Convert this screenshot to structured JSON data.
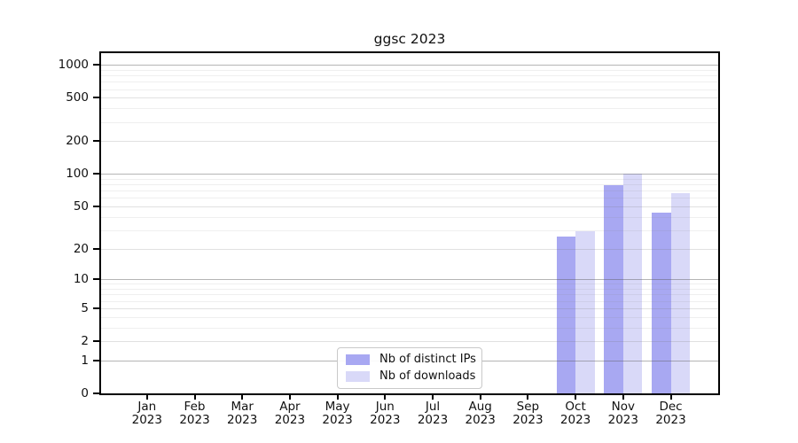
{
  "title": "ggsc 2023",
  "colors": {
    "background": "#ffffff",
    "spine": "#000000",
    "bar_distinct_ips": "#a8a8f2",
    "bar_downloads": "#d9d9f8",
    "legend_border": "#c9c9c9"
  },
  "chart_data": {
    "type": "bar",
    "title": "ggsc 2023",
    "categories": [
      {
        "month": "Jan",
        "year": "2023"
      },
      {
        "month": "Feb",
        "year": "2023"
      },
      {
        "month": "Mar",
        "year": "2023"
      },
      {
        "month": "Apr",
        "year": "2023"
      },
      {
        "month": "May",
        "year": "2023"
      },
      {
        "month": "Jun",
        "year": "2023"
      },
      {
        "month": "Jul",
        "year": "2023"
      },
      {
        "month": "Aug",
        "year": "2023"
      },
      {
        "month": "Sep",
        "year": "2023"
      },
      {
        "month": "Oct",
        "year": "2023"
      },
      {
        "month": "Nov",
        "year": "2023"
      },
      {
        "month": "Dec",
        "year": "2023"
      }
    ],
    "series": [
      {
        "name": "Nb of distinct IPs",
        "color": "#a8a8f2",
        "values": [
          0,
          0,
          0,
          0,
          0,
          0,
          0,
          0,
          0,
          26,
          78,
          44
        ]
      },
      {
        "name": "Nb of downloads",
        "color": "#d9d9f8",
        "values": [
          0,
          0,
          0,
          0,
          0,
          0,
          0,
          0,
          0,
          29,
          101,
          66
        ]
      }
    ],
    "y_axis": {
      "scale": "log10(1+x)",
      "ticks": [
        0,
        1,
        2,
        5,
        10,
        20,
        50,
        100,
        200,
        500,
        1000
      ],
      "tick_labels": [
        "0",
        "1",
        "2",
        "5",
        "10",
        "20",
        "50",
        "100",
        "200",
        "500",
        "1000"
      ],
      "minor_ticks": [
        3,
        4,
        6,
        7,
        8,
        9,
        30,
        40,
        60,
        70,
        80,
        90,
        300,
        400,
        600,
        700,
        800,
        900
      ],
      "ymax": 1280,
      "grid": true
    },
    "legend_position": "lower center"
  }
}
